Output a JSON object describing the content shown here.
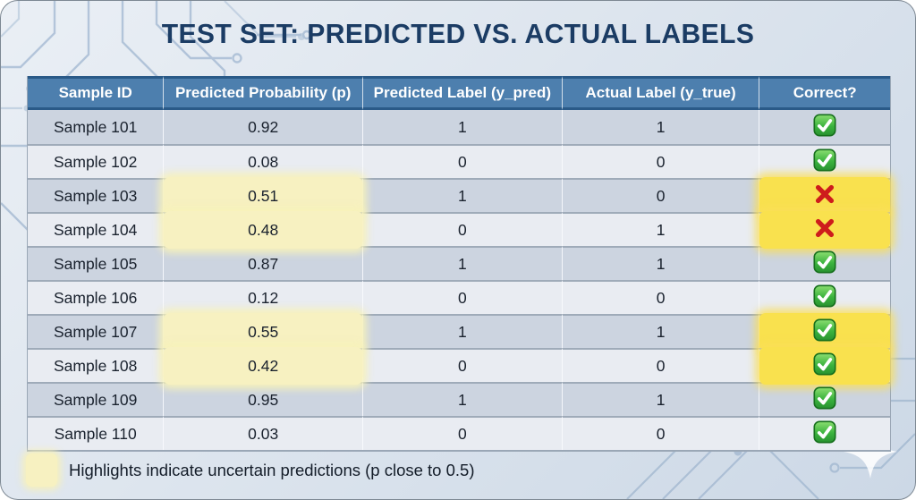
{
  "title": "TEST SET: PREDICTED VS. ACTUAL LABELS",
  "table": {
    "columns": [
      "Sample ID",
      "Predicted Probability (p)",
      "Predicted Label (y_pred)",
      "Actual Label (y_true)",
      "Correct?"
    ],
    "rows": [
      {
        "sample_id": "Sample 101",
        "probability": "0.92",
        "predicted_label": "1",
        "actual_label": "1",
        "correct": true,
        "uncertain": false
      },
      {
        "sample_id": "Sample 102",
        "probability": "0.08",
        "predicted_label": "0",
        "actual_label": "0",
        "correct": true,
        "uncertain": false
      },
      {
        "sample_id": "Sample 103",
        "probability": "0.51",
        "predicted_label": "1",
        "actual_label": "0",
        "correct": false,
        "uncertain": true
      },
      {
        "sample_id": "Sample 104",
        "probability": "0.48",
        "predicted_label": "0",
        "actual_label": "1",
        "correct": false,
        "uncertain": true
      },
      {
        "sample_id": "Sample 105",
        "probability": "0.87",
        "predicted_label": "1",
        "actual_label": "1",
        "correct": true,
        "uncertain": false
      },
      {
        "sample_id": "Sample 106",
        "probability": "0.12",
        "predicted_label": "0",
        "actual_label": "0",
        "correct": true,
        "uncertain": false
      },
      {
        "sample_id": "Sample 107",
        "probability": "0.55",
        "predicted_label": "1",
        "actual_label": "1",
        "correct": true,
        "uncertain": true
      },
      {
        "sample_id": "Sample 108",
        "probability": "0.42",
        "predicted_label": "0",
        "actual_label": "0",
        "correct": true,
        "uncertain": true
      },
      {
        "sample_id": "Sample 109",
        "probability": "0.95",
        "predicted_label": "1",
        "actual_label": "1",
        "correct": true,
        "uncertain": false
      },
      {
        "sample_id": "Sample 110",
        "probability": "0.03",
        "predicted_label": "0",
        "actual_label": "0",
        "correct": true,
        "uncertain": false
      }
    ]
  },
  "legend": {
    "text": "Highlights indicate uncertain predictions (p close to 0.5)"
  },
  "icons": {
    "correct": "check-icon",
    "incorrect": "cross-icon",
    "decorative": [
      "circuit-pattern-icon",
      "sparkle-icon"
    ]
  },
  "colors": {
    "header_bg": "#4d7fae",
    "header_border": "#2a5a88",
    "row_odd": "#ccd4e0",
    "row_even": "#e9ecf2",
    "highlight_pale_yellow": "#f7f1c1",
    "highlight_gold": "#f9e14e",
    "check_green": "#2e9e33",
    "cross_red": "#ce1c1c",
    "title_navy": "#1b3c64"
  },
  "chart_data": {
    "type": "table",
    "title": "TEST SET: PREDICTED VS. ACTUAL LABELS",
    "columns": [
      "Sample ID",
      "Predicted Probability (p)",
      "Predicted Label (y_pred)",
      "Actual Label (y_true)",
      "Correct?"
    ],
    "rows": [
      [
        "Sample 101",
        0.92,
        1,
        1,
        "correct"
      ],
      [
        "Sample 102",
        0.08,
        0,
        0,
        "correct"
      ],
      [
        "Sample 103",
        0.51,
        1,
        0,
        "incorrect"
      ],
      [
        "Sample 104",
        0.48,
        0,
        1,
        "incorrect"
      ],
      [
        "Sample 105",
        0.87,
        1,
        1,
        "correct"
      ],
      [
        "Sample 106",
        0.12,
        0,
        0,
        "correct"
      ],
      [
        "Sample 107",
        0.55,
        1,
        1,
        "correct"
      ],
      [
        "Sample 108",
        0.42,
        0,
        0,
        "correct"
      ],
      [
        "Sample 109",
        0.95,
        1,
        1,
        "correct"
      ],
      [
        "Sample 110",
        0.03,
        0,
        0,
        "correct"
      ]
    ],
    "highlighted_uncertain_rows": [
      "Sample 103",
      "Sample 104",
      "Sample 107",
      "Sample 108"
    ],
    "legend": "Highlights indicate uncertain predictions (p close to 0.5)"
  }
}
